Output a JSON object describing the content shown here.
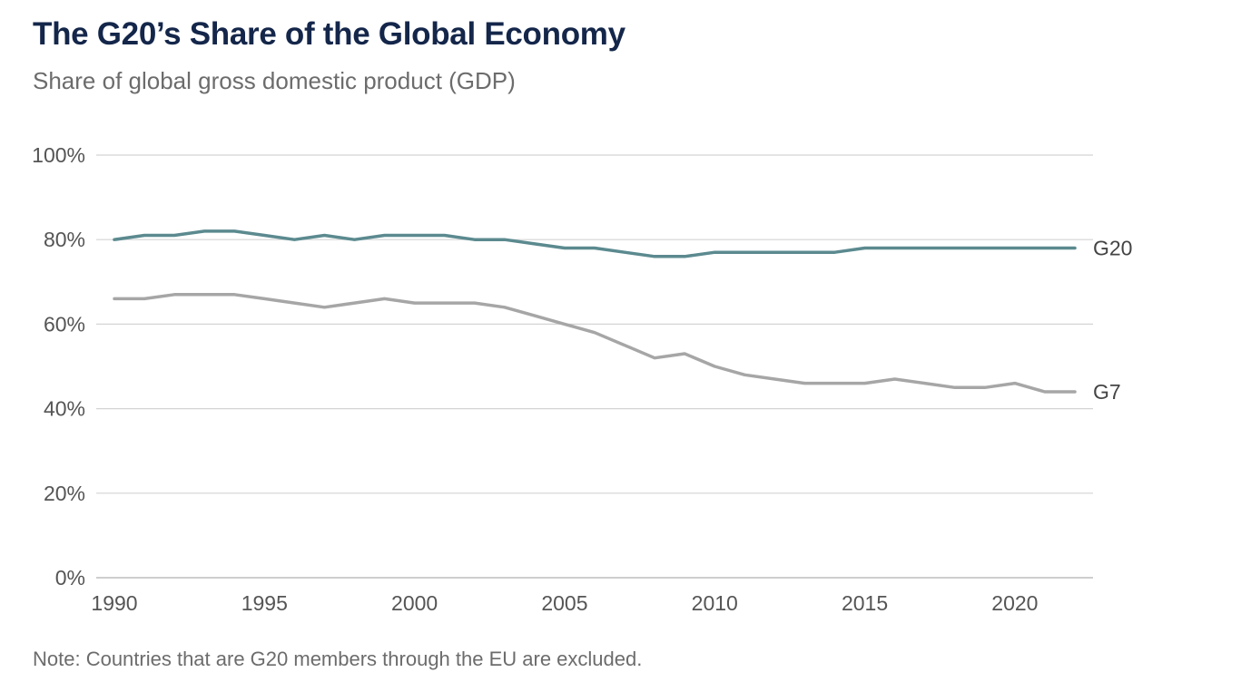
{
  "header": {
    "title": "The G20’s Share of the Global Economy",
    "subtitle": "Share of global gross domestic product (GDP)"
  },
  "footer": {
    "note": "Note: Countries that are G20 members through the EU are excluded."
  },
  "colors": {
    "g20": "#5b8a8f",
    "g7": "#a6a6a6",
    "grid": "#d4d4d4",
    "axis": "#bdbdbd"
  },
  "chart_data": {
    "type": "line",
    "title": "The G20’s Share of the Global Economy",
    "subtitle": "Share of global gross domestic product (GDP)",
    "xlabel": "",
    "ylabel": "",
    "xlim": [
      1990,
      2022
    ],
    "ylim": [
      0,
      100
    ],
    "grid": true,
    "legend": "inline-right",
    "x_ticks": [
      1990,
      1995,
      2000,
      2005,
      2010,
      2015,
      2020
    ],
    "x_tick_labels": [
      "1990",
      "1995",
      "2000",
      "2005",
      "2010",
      "2015",
      "2020"
    ],
    "y_ticks": [
      0,
      20,
      40,
      60,
      80,
      100
    ],
    "y_tick_labels": [
      "0%",
      "20%",
      "40%",
      "60%",
      "80%",
      "100%"
    ],
    "x": [
      1990,
      1991,
      1992,
      1993,
      1994,
      1995,
      1996,
      1997,
      1998,
      1999,
      2000,
      2001,
      2002,
      2003,
      2004,
      2005,
      2006,
      2007,
      2008,
      2009,
      2010,
      2011,
      2012,
      2013,
      2014,
      2015,
      2016,
      2017,
      2018,
      2019,
      2020,
      2021,
      2022
    ],
    "series": [
      {
        "name": "G20",
        "label": "G20",
        "color": "#5b8a8f",
        "values": [
          80,
          81,
          81,
          82,
          82,
          81,
          80,
          81,
          80,
          81,
          81,
          81,
          80,
          80,
          79,
          78,
          78,
          77,
          76,
          76,
          77,
          77,
          77,
          77,
          77,
          78,
          78,
          78,
          78,
          78,
          78,
          78,
          78
        ]
      },
      {
        "name": "G7",
        "label": "G7",
        "color": "#a6a6a6",
        "values": [
          66,
          66,
          67,
          67,
          67,
          66,
          65,
          64,
          65,
          66,
          65,
          65,
          65,
          64,
          62,
          60,
          58,
          55,
          52,
          53,
          50,
          48,
          47,
          46,
          46,
          46,
          47,
          46,
          45,
          45,
          46,
          44,
          44
        ]
      }
    ]
  }
}
